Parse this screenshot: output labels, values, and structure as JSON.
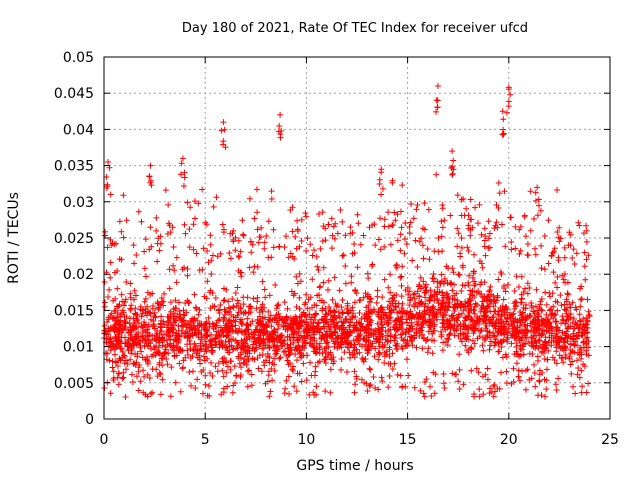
{
  "chart_data": {
    "type": "scatter",
    "title": "Day 180 of 2021, Rate Of TEC Index for receiver ufcd",
    "xlabel": "GPS time / hours",
    "ylabel": "ROTI / TECUs",
    "xlim": [
      0,
      25
    ],
    "ylim": [
      0,
      0.05
    ],
    "grid": true,
    "marker": "+",
    "series_color": "#ff0000",
    "x_ticks": [
      0,
      5,
      10,
      15,
      20,
      25
    ],
    "x_tick_labels": [
      "0",
      "5",
      "10",
      "15",
      "20",
      "25"
    ],
    "y_ticks": [
      0,
      0.005,
      0.01,
      0.015,
      0.02,
      0.025,
      0.03,
      0.035,
      0.04,
      0.045,
      0.05
    ],
    "y_tick_labels": [
      "0",
      "0.005",
      "0.01",
      "0.015",
      "0.02",
      "0.025",
      "0.03",
      "0.035",
      "0.04",
      "0.045",
      "0.05"
    ],
    "x_range_of_data": [
      0,
      24
    ],
    "bulk_band": {
      "low": 0.005,
      "high": 0.02
    },
    "notable_peaks": [
      {
        "x": 0.2,
        "y": 0.0355
      },
      {
        "x": 2.3,
        "y": 0.035
      },
      {
        "x": 3.9,
        "y": 0.036
      },
      {
        "x": 5.9,
        "y": 0.041
      },
      {
        "x": 8.7,
        "y": 0.042
      },
      {
        "x": 13.7,
        "y": 0.0345
      },
      {
        "x": 16.5,
        "y": 0.046
      },
      {
        "x": 17.2,
        "y": 0.037
      },
      {
        "x": 19.7,
        "y": 0.0425
      },
      {
        "x": 20.0,
        "y": 0.0458
      },
      {
        "x": 21.4,
        "y": 0.032
      }
    ]
  }
}
